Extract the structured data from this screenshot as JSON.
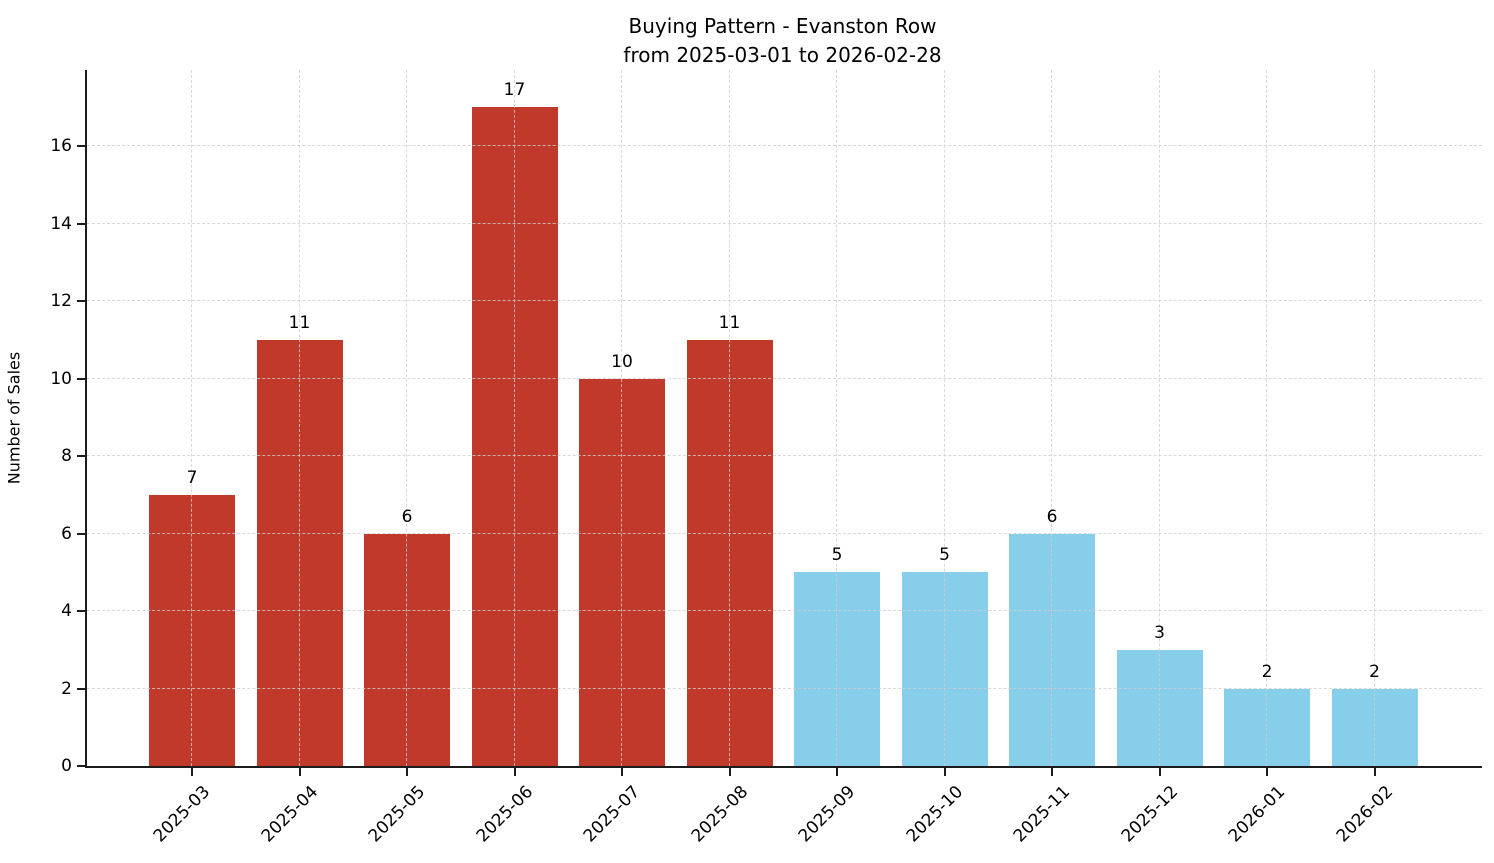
{
  "title": {
    "line1": "Buying Pattern - Evanston Row",
    "line2": "from 2025-03-01 to 2026-02-28"
  },
  "ylabel": "Number of Sales",
  "chart_data": {
    "type": "bar",
    "title": "Buying Pattern - Evanston Row\nfrom 2025-03-01 to 2026-02-28",
    "xlabel": "",
    "ylabel": "Number of Sales",
    "categories": [
      "2025-03",
      "2025-04",
      "2025-05",
      "2025-06",
      "2025-07",
      "2025-08",
      "2025-09",
      "2025-10",
      "2025-11",
      "2025-12",
      "2026-01",
      "2026-02"
    ],
    "values": [
      7,
      11,
      6,
      17,
      10,
      11,
      5,
      5,
      6,
      3,
      2,
      2
    ],
    "value_labels": [
      7,
      11,
      6,
      17,
      10,
      11,
      5,
      5,
      6,
      3,
      2,
      2
    ],
    "bar_colors": [
      "#c0392b",
      "#c0392b",
      "#c0392b",
      "#c0392b",
      "#c0392b",
      "#c0392b",
      "#87ceeb",
      "#87ceeb",
      "#87ceeb",
      "#87ceeb",
      "#87ceeb",
      "#87ceeb"
    ],
    "yticks": [
      0,
      2,
      4,
      6,
      8,
      10,
      12,
      14,
      16
    ],
    "ylim": [
      0,
      17.96
    ],
    "grid": true,
    "grid_style": "dashed",
    "legend": "none",
    "xtick_rotation": 45
  },
  "colors": {
    "bar_red": "#c0392b",
    "bar_blue": "#87ceeb",
    "grid": "#cfcfcf",
    "axis": "#1c1c1c",
    "text": "#000000",
    "background": "#ffffff"
  }
}
